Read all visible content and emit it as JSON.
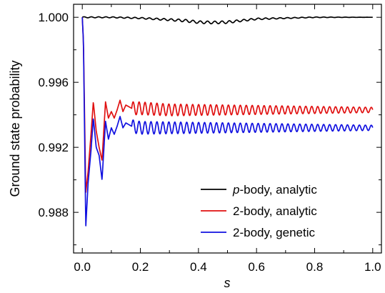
{
  "chart_data": {
    "type": "line",
    "xlabel": "s",
    "ylabel": "Ground state probability",
    "xlim": [
      -0.03,
      1.03
    ],
    "ylim": [
      0.9855,
      1.0008
    ],
    "xticks": [
      0.0,
      0.2,
      0.4,
      0.6,
      0.8,
      1.0
    ],
    "xtick_labels": [
      "0.0",
      "0.2",
      "0.4",
      "0.6",
      "0.8",
      "1.0"
    ],
    "yticks": [
      0.988,
      0.992,
      0.996,
      1.0
    ],
    "ytick_labels": [
      "0.988",
      "0.992",
      "0.996",
      "1.000"
    ],
    "grid": false,
    "legend_position": "bottom-right",
    "series": [
      {
        "name": "p-body, analytic",
        "name_italic_part": "p",
        "name_rest": "-body, analytic",
        "color": "#000000",
        "x": [
          0.0,
          0.1,
          0.2,
          0.3,
          0.35,
          0.4,
          0.45,
          0.5,
          0.55,
          0.6,
          0.7,
          0.8,
          0.9,
          1.0
        ],
        "y": [
          1.0,
          1.0,
          0.99995,
          0.99985,
          0.9998,
          0.9997,
          0.99968,
          0.9997,
          0.9998,
          0.9999,
          0.99995,
          1.0,
          1.0,
          1.0
        ],
        "osc_amplitude": [
          3e-05,
          3e-05,
          4e-05,
          6e-05,
          8e-05,
          8e-05,
          8e-05,
          8e-05,
          6e-05,
          5e-05,
          3e-05,
          2e-05,
          1e-05,
          0.0
        ],
        "osc_period": 0.025
      },
      {
        "name": "2-body, analytic",
        "color": "#e01010",
        "x": [
          0.0,
          0.004,
          0.012,
          0.02,
          0.03,
          0.038,
          0.048,
          0.058,
          0.068,
          0.08,
          0.09,
          0.1,
          0.11,
          0.12,
          0.13,
          0.14,
          0.15,
          0.17,
          0.2,
          0.3,
          0.4,
          0.5,
          0.6,
          0.7,
          0.8,
          0.9,
          1.0
        ],
        "y": [
          1.0,
          0.9985,
          0.9892,
          0.9905,
          0.9928,
          0.9948,
          0.993,
          0.992,
          0.9912,
          0.9948,
          0.9938,
          0.9942,
          0.9938,
          0.9943,
          0.9949,
          0.9942,
          0.9946,
          0.9944,
          0.9944,
          0.9943,
          0.9943,
          0.9943,
          0.9943,
          0.9943,
          0.9943,
          0.9943,
          0.9943
        ],
        "osc_amplitude_tail": 0.0004,
        "osc_period": 0.0205,
        "osc_start": 0.17
      },
      {
        "name": "2-body, genetic",
        "color": "#1010e0",
        "x": [
          0.0,
          0.004,
          0.012,
          0.02,
          0.03,
          0.038,
          0.048,
          0.058,
          0.068,
          0.08,
          0.09,
          0.1,
          0.11,
          0.12,
          0.13,
          0.14,
          0.15,
          0.17,
          0.2,
          0.3,
          0.4,
          0.5,
          0.6,
          0.7,
          0.8,
          0.9,
          1.0
        ],
        "y": [
          1.0,
          0.9985,
          0.9871,
          0.9898,
          0.9918,
          0.9938,
          0.992,
          0.9915,
          0.99,
          0.9936,
          0.9925,
          0.9932,
          0.9928,
          0.9933,
          0.9939,
          0.9932,
          0.9935,
          0.9933,
          0.9932,
          0.9932,
          0.9932,
          0.9932,
          0.9932,
          0.9932,
          0.9932,
          0.9932,
          0.9932
        ],
        "osc_amplitude_tail": 0.0004,
        "osc_period": 0.0205,
        "osc_start": 0.17
      }
    ]
  }
}
